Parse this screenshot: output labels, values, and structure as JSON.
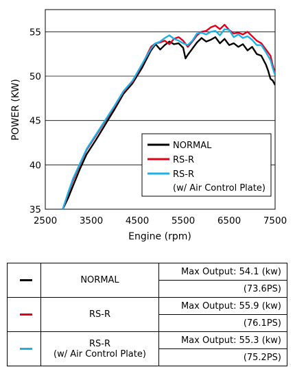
{
  "chart_data": {
    "type": "line",
    "xlabel": "Engine (rpm)",
    "ylabel": "POWER (KW)",
    "xlim": [
      2500,
      7500
    ],
    "ylim": [
      35,
      57.5
    ],
    "xticks": [
      "2500",
      "3500",
      "4500",
      "5500",
      "6500",
      "7500"
    ],
    "xtick_values": [
      2500,
      3500,
      4500,
      5500,
      6500,
      7500
    ],
    "yticks": [
      "35",
      "40",
      "45",
      "50",
      "55"
    ],
    "ytick_values": [
      35,
      40,
      45,
      50,
      55
    ],
    "grid": "horizontal",
    "legend_position": "bottom-right",
    "series": [
      {
        "name": "NORMAL",
        "color": "#000000",
        "x": [
          2880,
          3000,
          3100,
          3250,
          3400,
          3600,
          3800,
          4000,
          4200,
          4400,
          4600,
          4800,
          4900,
          5000,
          5100,
          5200,
          5300,
          5400,
          5500,
          5550,
          5600,
          5700,
          5800,
          5900,
          6000,
          6100,
          6200,
          6300,
          6400,
          6500,
          6600,
          6700,
          6800,
          6900,
          7000,
          7100,
          7200,
          7300,
          7350,
          7400,
          7450,
          7500
        ],
        "y": [
          35,
          36.3,
          37.6,
          39.5,
          41.2,
          42.8,
          44.5,
          46.2,
          48.0,
          49.2,
          50.9,
          52.9,
          53.6,
          53.0,
          53.5,
          53.9,
          53.6,
          53.7,
          53.2,
          52.0,
          52.4,
          53.1,
          53.8,
          54.3,
          53.9,
          54.1,
          54.4,
          53.7,
          54.2,
          53.5,
          53.7,
          53.3,
          53.6,
          52.9,
          53.3,
          52.5,
          52.3,
          51.3,
          50.6,
          49.7,
          49.5,
          49.0
        ],
        "legend_label_lines": [
          "NORMAL"
        ]
      },
      {
        "name": "RS-R",
        "color": "#e3001b",
        "x": [
          2880,
          3000,
          3100,
          3250,
          3400,
          3600,
          3800,
          4000,
          4200,
          4400,
          4600,
          4800,
          4900,
          5000,
          5100,
          5200,
          5300,
          5400,
          5500,
          5600,
          5700,
          5800,
          5900,
          6000,
          6100,
          6200,
          6300,
          6400,
          6500,
          6600,
          6700,
          6800,
          6900,
          7000,
          7100,
          7200,
          7300,
          7400,
          7450,
          7500
        ],
        "y": [
          35,
          36.8,
          38.2,
          40.0,
          41.7,
          43.3,
          44.9,
          46.5,
          48.2,
          49.4,
          51.2,
          53.3,
          53.7,
          53.8,
          54.0,
          53.6,
          54.2,
          54.4,
          54.0,
          53.3,
          53.9,
          54.6,
          55.0,
          55.1,
          55.5,
          55.7,
          55.3,
          55.8,
          55.2,
          54.8,
          54.9,
          54.7,
          55.0,
          54.5,
          54.0,
          53.7,
          53.0,
          52.3,
          51.2,
          50.3
        ],
        "legend_label_lines": [
          "RS-R"
        ]
      },
      {
        "name": "RS-R (w/ Air Control Plate)",
        "color": "#1ab1e8",
        "x": [
          2880,
          3000,
          3100,
          3250,
          3400,
          3600,
          3800,
          4000,
          4200,
          4400,
          4600,
          4800,
          4900,
          5000,
          5100,
          5200,
          5300,
          5400,
          5500,
          5600,
          5700,
          5800,
          5900,
          6000,
          6100,
          6200,
          6300,
          6400,
          6500,
          6600,
          6700,
          6800,
          6900,
          7000,
          7100,
          7200,
          7300,
          7400,
          7450,
          7500
        ],
        "y": [
          35,
          36.9,
          38.4,
          40.1,
          41.8,
          43.4,
          45.0,
          46.6,
          48.3,
          49.5,
          51.3,
          53.1,
          53.7,
          53.9,
          54.3,
          54.6,
          54.2,
          54.0,
          53.7,
          53.5,
          54.0,
          54.8,
          54.9,
          54.7,
          55.0,
          55.1,
          54.6,
          55.3,
          55.2,
          54.4,
          54.7,
          54.3,
          54.5,
          54.1,
          53.5,
          53.5,
          52.7,
          51.8,
          50.9,
          50.1
        ],
        "legend_label_lines": [
          "RS-R",
          "(w/ Air Control Plate)"
        ]
      }
    ]
  },
  "summary_table": {
    "rows": [
      {
        "label_lines": [
          "NORMAL"
        ],
        "color": "#000000",
        "max_output": "Max Output: 54.1 (kw)",
        "ps": "(73.6PS)"
      },
      {
        "label_lines": [
          "RS-R"
        ],
        "color": "#e3001b",
        "max_output": "Max Output: 55.9 (kw)",
        "ps": "(76.1PS)"
      },
      {
        "label_lines": [
          "RS-R",
          "(w/ Air Control Plate)"
        ],
        "color": "#1ab1e8",
        "max_output": "Max Output: 55.3 (kw)",
        "ps": "(75.2PS)"
      }
    ]
  }
}
